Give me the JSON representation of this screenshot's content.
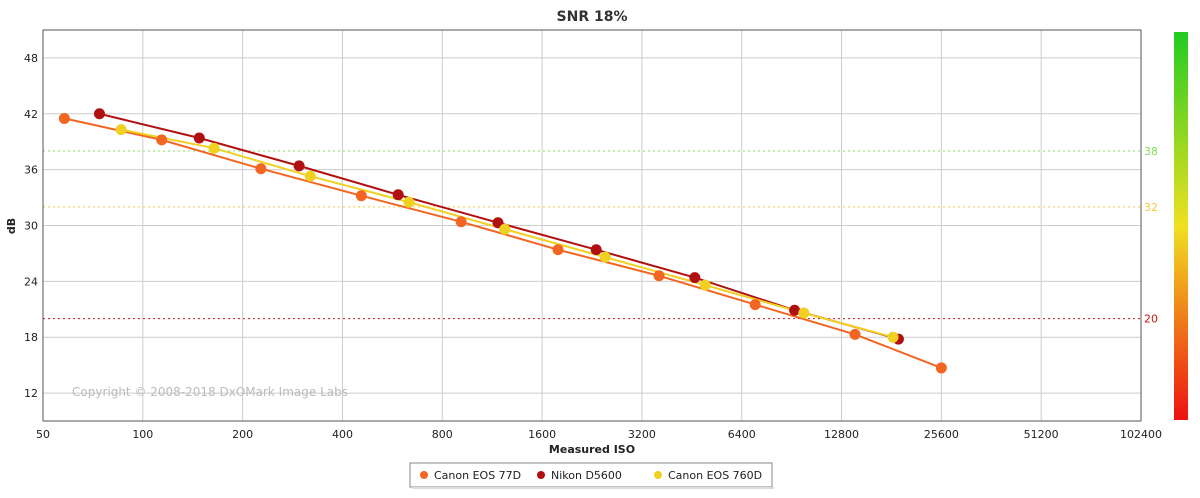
{
  "chart_data": {
    "type": "line",
    "title": "SNR 18%",
    "xlabel": "Measured ISO",
    "ylabel": "dB",
    "x_scale": "log2",
    "xlim": [
      50,
      102400
    ],
    "ylim": [
      9,
      51
    ],
    "x_ticks": [
      50,
      100,
      200,
      400,
      800,
      1600,
      3200,
      6400,
      12800,
      25600,
      51200,
      102400
    ],
    "x_tick_labels": [
      "50",
      "100",
      "200",
      "400",
      "800",
      "1600",
      "3200",
      "6400",
      "12800",
      "25600",
      "51200",
      "102400"
    ],
    "y_ticks": [
      12,
      18,
      24,
      30,
      36,
      42,
      48
    ],
    "y_tick_labels": [
      "12",
      "18",
      "24",
      "30",
      "36",
      "42",
      "48"
    ],
    "grid": true,
    "legend_position": "bottom-center",
    "copyright": "Copyright © 2008-2018 DxOMark Image Labs",
    "reference_lines": [
      {
        "y": 38,
        "label": "38",
        "color": "#7be05a"
      },
      {
        "y": 32,
        "label": "32",
        "color": "#f5c93b"
      },
      {
        "y": 20,
        "label": "20",
        "color": "#c01818"
      }
    ],
    "series": [
      {
        "name": "Canon EOS 77D",
        "color": "#f26522",
        "x": [
          58,
          114,
          227,
          456,
          912,
          1787,
          3605,
          7027,
          14054,
          25600
        ],
        "y": [
          41.5,
          39.2,
          36.1,
          33.2,
          30.4,
          27.4,
          24.6,
          21.5,
          18.3,
          14.7
        ]
      },
      {
        "name": "Nikon D5600",
        "color": "#b01010",
        "x": [
          74,
          148,
          296,
          589,
          1178,
          2330,
          4620,
          9240,
          19000
        ],
        "y": [
          42.0,
          39.4,
          36.4,
          33.3,
          30.3,
          27.4,
          24.4,
          20.9,
          17.8
        ]
      },
      {
        "name": "Canon EOS 760D",
        "color": "#f0d020",
        "x": [
          86,
          164,
          320,
          635,
          1235,
          2480,
          4965,
          9850,
          18300
        ],
        "y": [
          40.3,
          38.3,
          35.3,
          32.5,
          29.6,
          26.6,
          23.6,
          20.6,
          18.0
        ]
      }
    ]
  }
}
